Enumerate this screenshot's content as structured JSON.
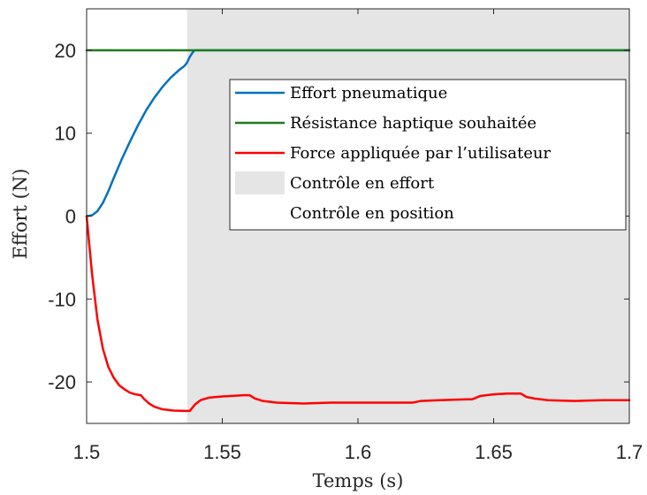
{
  "chart_data": {
    "type": "line",
    "title": "",
    "xlabel": "Temps (s)",
    "ylabel": "Effort (N)",
    "xlim": [
      1.5,
      1.7
    ],
    "ylim": [
      -25,
      25
    ],
    "x_ticks": [
      "1.5",
      "1.55",
      "1.6",
      "1.65",
      "1.7"
    ],
    "y_ticks": [
      "20",
      "10",
      "0",
      "-10",
      "-20"
    ],
    "grid": false,
    "legend_position": "center-right",
    "shaded_regions": [
      {
        "name": "Contrôle en effort",
        "x_range": [
          1.537,
          1.7
        ],
        "color": "#e5e5e5"
      },
      {
        "name": "Contrôle en position",
        "x_range": [
          1.5,
          1.537
        ],
        "color": "#ffffff"
      }
    ],
    "series": [
      {
        "name": "Effort pneumatique",
        "color": "#0072bd",
        "x": [
          1.5,
          1.502,
          1.504,
          1.506,
          1.508,
          1.51,
          1.513,
          1.516,
          1.519,
          1.522,
          1.525,
          1.528,
          1.531,
          1.534,
          1.536,
          1.537,
          1.538,
          1.539,
          1.5395,
          1.54,
          1.545,
          1.55,
          1.6,
          1.65,
          1.7
        ],
        "y": [
          0,
          0.1,
          0.6,
          1.6,
          3.0,
          4.6,
          6.9,
          9.0,
          11.0,
          12.8,
          14.3,
          15.6,
          16.7,
          17.6,
          18.1,
          18.5,
          19.2,
          19.7,
          19.9,
          20,
          20,
          20,
          20,
          20,
          20
        ]
      },
      {
        "name": "Résistance haptique souhaitée",
        "color": "#1f7a1f",
        "x": [
          1.5,
          1.7
        ],
        "y": [
          20,
          20
        ]
      },
      {
        "name": "Force appliquée par l’utilisateur",
        "color": "#ff0000",
        "x": [
          1.5,
          1.502,
          1.504,
          1.506,
          1.508,
          1.51,
          1.512,
          1.514,
          1.516,
          1.518,
          1.52,
          1.521,
          1.523,
          1.525,
          1.528,
          1.532,
          1.536,
          1.538,
          1.54,
          1.542,
          1.545,
          1.55,
          1.555,
          1.558,
          1.56,
          1.562,
          1.565,
          1.57,
          1.58,
          1.59,
          1.6,
          1.61,
          1.62,
          1.623,
          1.63,
          1.64,
          1.642,
          1.645,
          1.65,
          1.655,
          1.66,
          1.662,
          1.665,
          1.67,
          1.68,
          1.69,
          1.7
        ],
        "y": [
          0,
          -7.0,
          -12.5,
          -16.0,
          -18.2,
          -19.5,
          -20.4,
          -20.9,
          -21.3,
          -21.5,
          -21.6,
          -22.0,
          -22.6,
          -23.0,
          -23.3,
          -23.45,
          -23.5,
          -23.5,
          -22.7,
          -22.2,
          -21.9,
          -21.75,
          -21.65,
          -21.6,
          -21.6,
          -22.0,
          -22.3,
          -22.5,
          -22.6,
          -22.5,
          -22.5,
          -22.5,
          -22.5,
          -22.3,
          -22.2,
          -22.1,
          -22.1,
          -21.7,
          -21.5,
          -21.4,
          -21.4,
          -21.8,
          -22.0,
          -22.2,
          -22.3,
          -22.2,
          -22.2
        ]
      }
    ]
  }
}
